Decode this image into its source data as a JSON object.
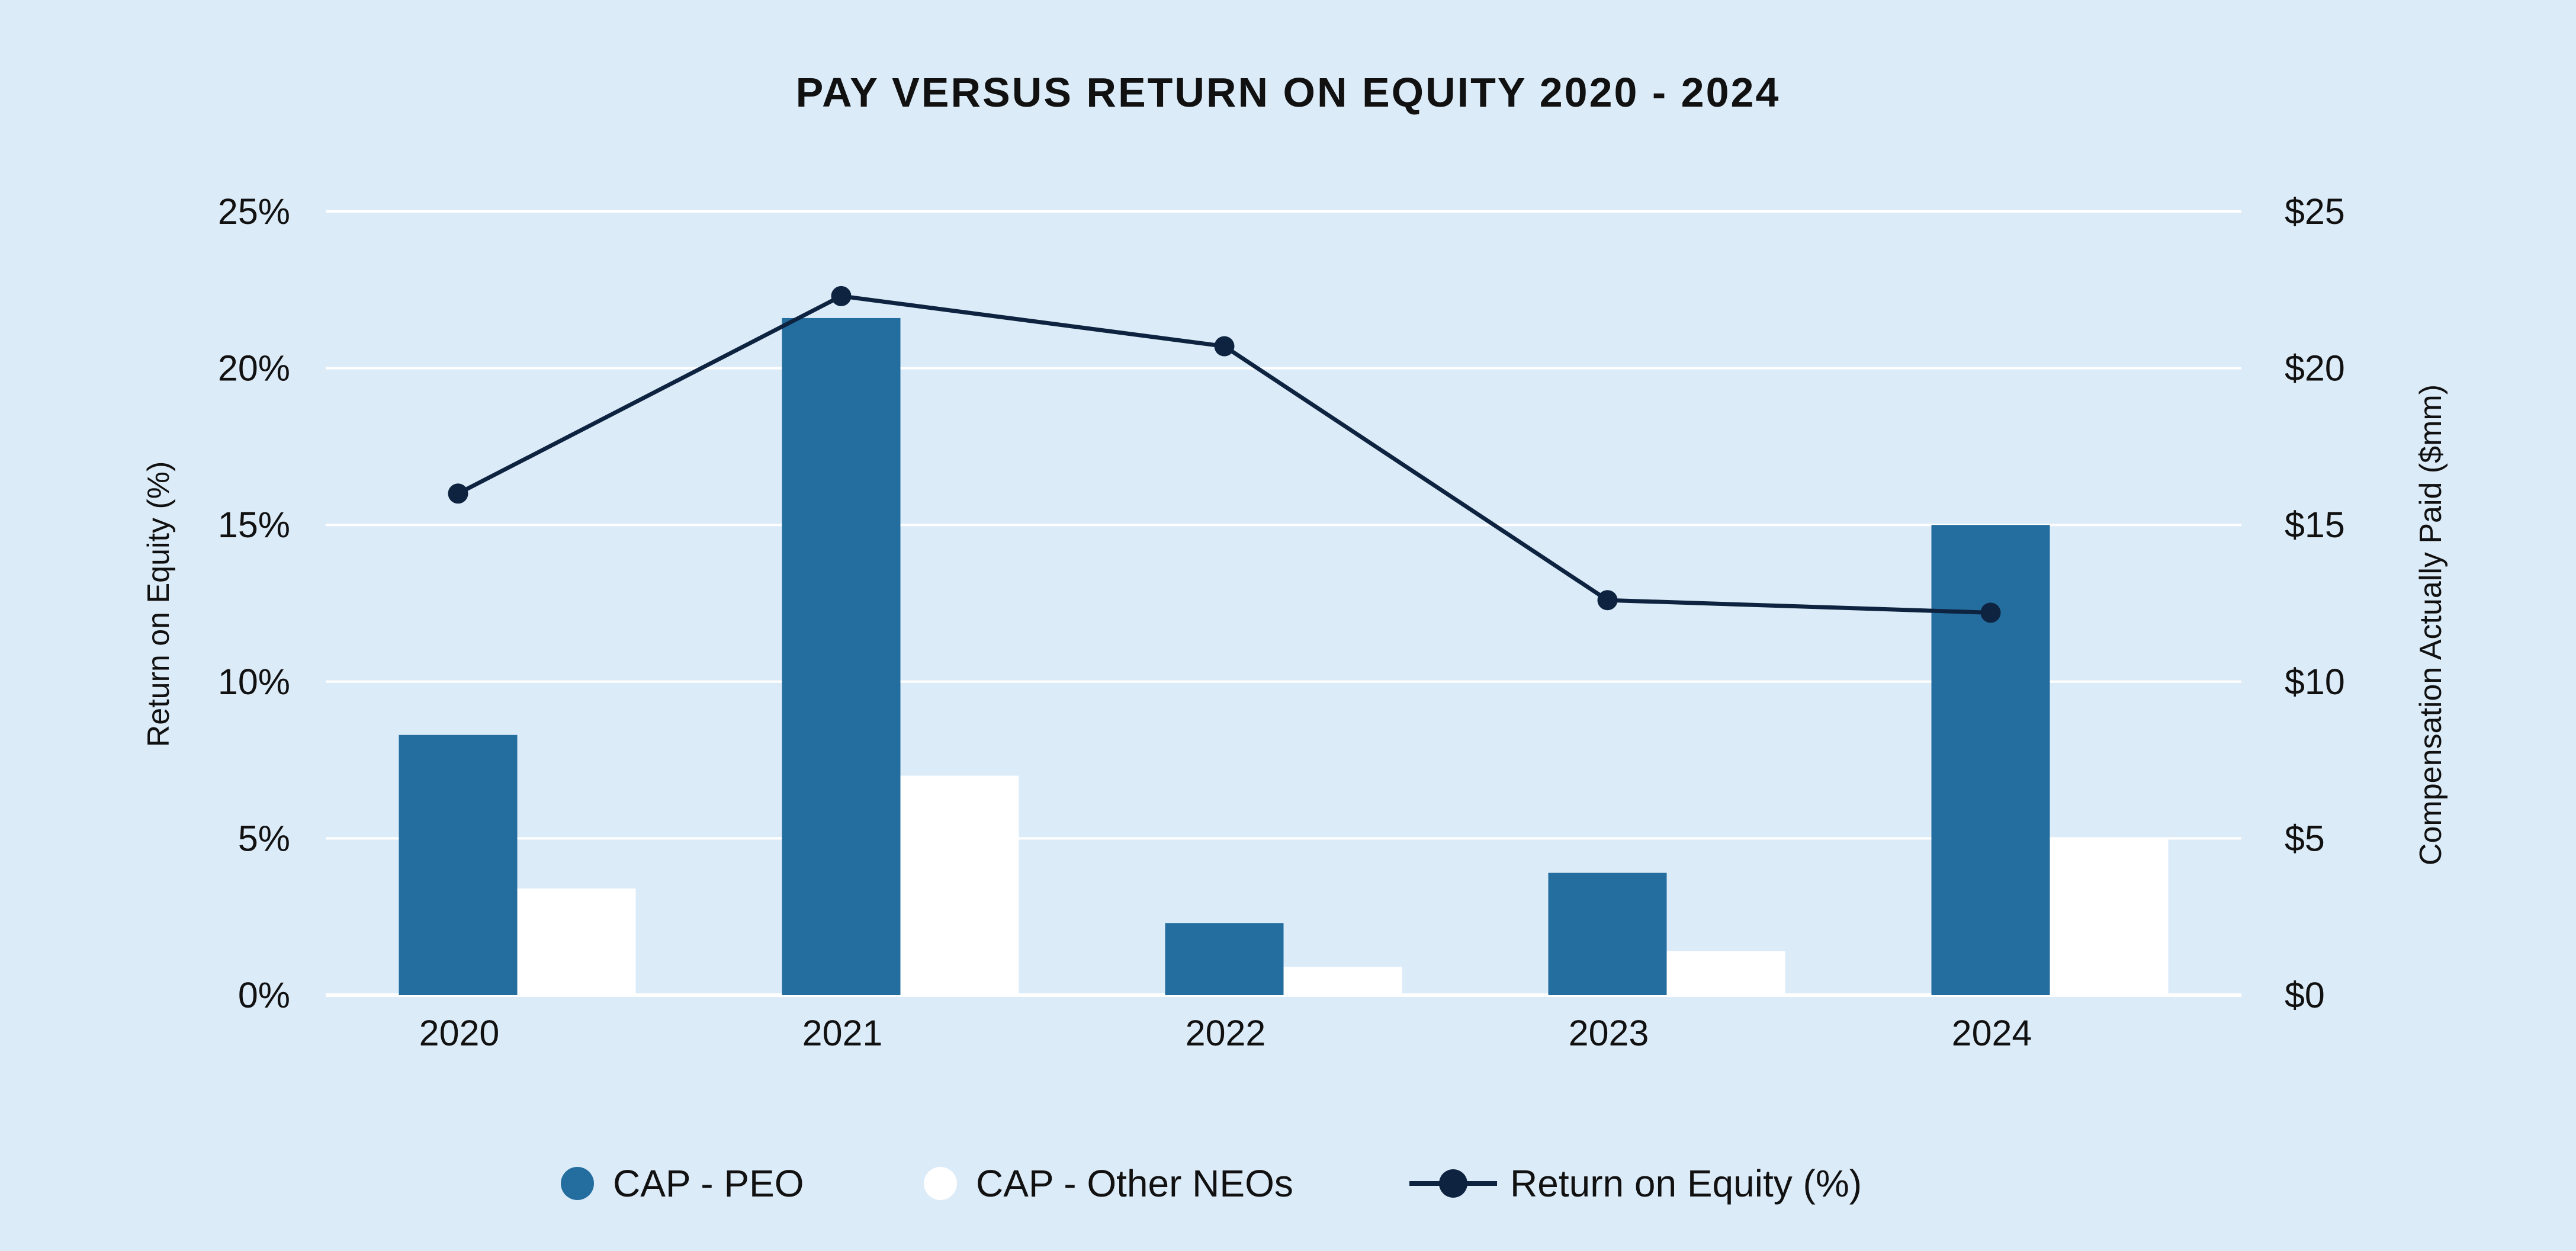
{
  "colors": {
    "background": "#dcebf8",
    "peo": "#246d9f",
    "other_neos": "#ffffff",
    "roe_line": "#0d2340",
    "grid": "#ffffff",
    "text": "#111111"
  },
  "chart_data": {
    "type": "bar",
    "title": "PAY VERSUS RETURN ON EQUITY 2020 - 2024",
    "categories": [
      "2020",
      "2021",
      "2022",
      "2023",
      "2024"
    ],
    "series": [
      {
        "name": "CAP - PEO",
        "type": "bar",
        "axis": "right",
        "values": [
          8.3,
          21.6,
          2.3,
          3.9,
          15.0
        ]
      },
      {
        "name": "CAP - Other NEOs",
        "type": "bar",
        "axis": "right",
        "values": [
          3.4,
          7.0,
          0.9,
          1.4,
          5.0
        ]
      },
      {
        "name": "Return on Equity (%)",
        "type": "line",
        "axis": "left",
        "values": [
          16.0,
          22.3,
          20.7,
          12.6,
          12.2
        ]
      }
    ],
    "y_left": {
      "label": "Return on Equity (%)",
      "range": [
        0,
        25
      ],
      "ticks": [
        "0%",
        "5%",
        "10%",
        "15%",
        "20%",
        "25%"
      ]
    },
    "y_right": {
      "label": "Compensation Actually Paid ($mm)",
      "range": [
        0,
        25
      ],
      "ticks": [
        "$0",
        "$5",
        "$10",
        "$15",
        "$20",
        "$25"
      ]
    },
    "grid": true,
    "legend_position": "bottom"
  }
}
